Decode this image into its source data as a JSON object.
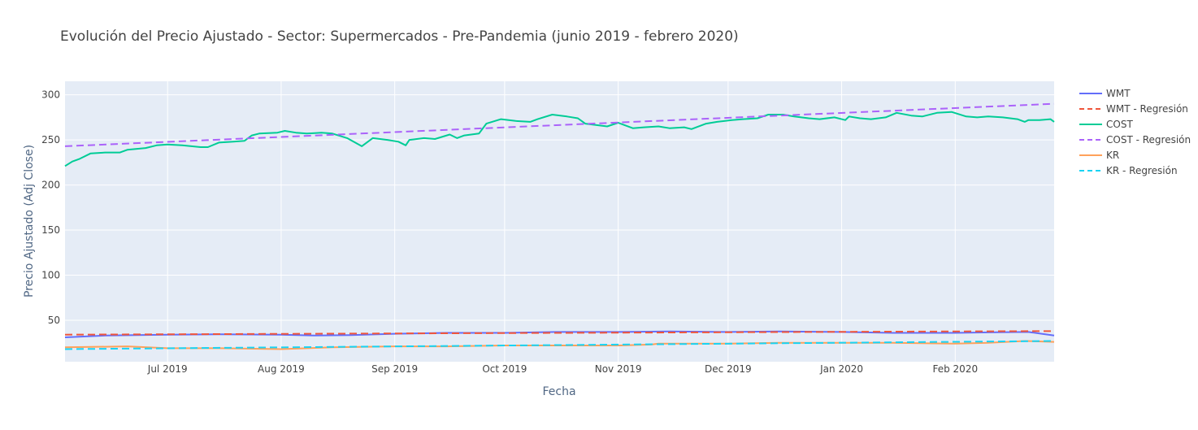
{
  "chart_data": {
    "type": "line",
    "title": "Evolución del Precio Ajustado - Sector: Supermercados - Pre-Pandemia (junio 2019 - febrero 2020)",
    "xlabel": "Fecha",
    "ylabel": "Precio Ajustado (Adj Close)",
    "xlim": [
      "2019-06-03",
      "2020-02-28"
    ],
    "ylim": [
      4,
      315
    ],
    "x_ticks": [
      {
        "date": "2019-07-01",
        "label": "Jul 2019"
      },
      {
        "date": "2019-08-01",
        "label": "Aug 2019"
      },
      {
        "date": "2019-09-01",
        "label": "Sep 2019"
      },
      {
        "date": "2019-10-01",
        "label": "Oct 2019"
      },
      {
        "date": "2019-11-01",
        "label": "Nov 2019"
      },
      {
        "date": "2019-12-01",
        "label": "Dec 2019"
      },
      {
        "date": "2020-01-01",
        "label": "Jan 2020"
      },
      {
        "date": "2020-02-01",
        "label": "Feb 2020"
      }
    ],
    "y_ticks": [
      50,
      100,
      150,
      200,
      250,
      300
    ],
    "grid": true,
    "plot_bgcolor": "#e5ecf6",
    "legend_position": "right",
    "series": [
      {
        "name": "WMT",
        "color": "#636efa",
        "dash": "solid",
        "points": [
          [
            "2019-06-03",
            31
          ],
          [
            "2019-06-14",
            33
          ],
          [
            "2019-07-01",
            34
          ],
          [
            "2019-07-15",
            34.5
          ],
          [
            "2019-08-01",
            34
          ],
          [
            "2019-08-10",
            33
          ],
          [
            "2019-08-20",
            33.5
          ],
          [
            "2019-09-01",
            35
          ],
          [
            "2019-09-15",
            36
          ],
          [
            "2019-10-01",
            36
          ],
          [
            "2019-10-15",
            37
          ],
          [
            "2019-11-01",
            37
          ],
          [
            "2019-11-15",
            37.5
          ],
          [
            "2019-12-01",
            37
          ],
          [
            "2019-12-15",
            37.5
          ],
          [
            "2020-01-01",
            37
          ],
          [
            "2020-01-15",
            36
          ],
          [
            "2020-02-01",
            36
          ],
          [
            "2020-02-10",
            36.5
          ],
          [
            "2020-02-21",
            37
          ],
          [
            "2020-02-28",
            33
          ]
        ]
      },
      {
        "name": "WMT - Regresión",
        "color": "#ef553b",
        "dash": "dash",
        "points": [
          [
            "2019-06-03",
            34
          ],
          [
            "2020-02-28",
            38
          ]
        ]
      },
      {
        "name": "COST",
        "color": "#00cc96",
        "dash": "solid",
        "points": [
          [
            "2019-06-03",
            221
          ],
          [
            "2019-06-05",
            226
          ],
          [
            "2019-06-07",
            229
          ],
          [
            "2019-06-10",
            235
          ],
          [
            "2019-06-14",
            236
          ],
          [
            "2019-06-18",
            236
          ],
          [
            "2019-06-20",
            239
          ],
          [
            "2019-06-25",
            241
          ],
          [
            "2019-06-28",
            244
          ],
          [
            "2019-07-01",
            245
          ],
          [
            "2019-07-05",
            244
          ],
          [
            "2019-07-10",
            242
          ],
          [
            "2019-07-12",
            242
          ],
          [
            "2019-07-15",
            247
          ],
          [
            "2019-07-19",
            248
          ],
          [
            "2019-07-22",
            249
          ],
          [
            "2019-07-24",
            255
          ],
          [
            "2019-07-26",
            257
          ],
          [
            "2019-07-31",
            258
          ],
          [
            "2019-08-02",
            260
          ],
          [
            "2019-08-05",
            258
          ],
          [
            "2019-08-08",
            257
          ],
          [
            "2019-08-12",
            258
          ],
          [
            "2019-08-15",
            257
          ],
          [
            "2019-08-19",
            252
          ],
          [
            "2019-08-23",
            243
          ],
          [
            "2019-08-26",
            252
          ],
          [
            "2019-08-28",
            251
          ],
          [
            "2019-08-30",
            250
          ],
          [
            "2019-09-02",
            248
          ],
          [
            "2019-09-04",
            244
          ],
          [
            "2019-09-05",
            250
          ],
          [
            "2019-09-09",
            252
          ],
          [
            "2019-09-12",
            251
          ],
          [
            "2019-09-16",
            256
          ],
          [
            "2019-09-18",
            252
          ],
          [
            "2019-09-20",
            255
          ],
          [
            "2019-09-24",
            257
          ],
          [
            "2019-09-26",
            268
          ],
          [
            "2019-09-30",
            273
          ],
          [
            "2019-10-04",
            271
          ],
          [
            "2019-10-08",
            270
          ],
          [
            "2019-10-10",
            273
          ],
          [
            "2019-10-14",
            278
          ],
          [
            "2019-10-18",
            276
          ],
          [
            "2019-10-21",
            274
          ],
          [
            "2019-10-23",
            268
          ],
          [
            "2019-10-25",
            267
          ],
          [
            "2019-10-29",
            265
          ],
          [
            "2019-11-01",
            269
          ],
          [
            "2019-11-05",
            263
          ],
          [
            "2019-11-08",
            264
          ],
          [
            "2019-11-12",
            265
          ],
          [
            "2019-11-15",
            263
          ],
          [
            "2019-11-19",
            264
          ],
          [
            "2019-11-21",
            262
          ],
          [
            "2019-11-25",
            268
          ],
          [
            "2019-11-28",
            270
          ],
          [
            "2019-12-02",
            272
          ],
          [
            "2019-12-05",
            273
          ],
          [
            "2019-12-09",
            274
          ],
          [
            "2019-12-12",
            278
          ],
          [
            "2019-12-16",
            278
          ],
          [
            "2019-12-19",
            276
          ],
          [
            "2019-12-23",
            274
          ],
          [
            "2019-12-26",
            273
          ],
          [
            "2019-12-30",
            275
          ],
          [
            "2020-01-02",
            272
          ],
          [
            "2020-01-03",
            276
          ],
          [
            "2020-01-06",
            274
          ],
          [
            "2020-01-09",
            273
          ],
          [
            "2020-01-13",
            275
          ],
          [
            "2020-01-16",
            280
          ],
          [
            "2020-01-20",
            277
          ],
          [
            "2020-01-23",
            276
          ],
          [
            "2020-01-27",
            280
          ],
          [
            "2020-01-31",
            281
          ],
          [
            "2020-02-04",
            276
          ],
          [
            "2020-02-07",
            275
          ],
          [
            "2020-02-10",
            276
          ],
          [
            "2020-02-14",
            275
          ],
          [
            "2020-02-18",
            273
          ],
          [
            "2020-02-20",
            270
          ],
          [
            "2020-02-21",
            272
          ],
          [
            "2020-02-24",
            272
          ],
          [
            "2020-02-27",
            273
          ],
          [
            "2020-02-28",
            270
          ]
        ]
      },
      {
        "name": "COST - Regresión",
        "color": "#ab63fa",
        "dash": "dash",
        "points": [
          [
            "2019-06-03",
            243
          ],
          [
            "2020-02-28",
            290
          ]
        ]
      },
      {
        "name": "KR",
        "color": "#ffa15a",
        "dash": "solid",
        "points": [
          [
            "2019-06-03",
            20
          ],
          [
            "2019-06-20",
            21
          ],
          [
            "2019-07-01",
            19
          ],
          [
            "2019-07-15",
            19
          ],
          [
            "2019-08-01",
            18
          ],
          [
            "2019-08-15",
            20
          ],
          [
            "2019-09-01",
            21
          ],
          [
            "2019-09-15",
            21
          ],
          [
            "2019-10-01",
            22
          ],
          [
            "2019-10-15",
            22
          ],
          [
            "2019-11-01",
            22
          ],
          [
            "2019-11-10",
            23
          ],
          [
            "2019-11-12",
            24
          ],
          [
            "2019-11-20",
            24
          ],
          [
            "2019-12-01",
            24
          ],
          [
            "2019-12-15",
            25
          ],
          [
            "2020-01-01",
            25
          ],
          [
            "2020-01-15",
            25
          ],
          [
            "2020-02-01",
            24
          ],
          [
            "2020-02-10",
            25
          ],
          [
            "2020-02-20",
            27
          ],
          [
            "2020-02-28",
            26
          ]
        ]
      },
      {
        "name": "KR - Regresión",
        "color": "#19d3f3",
        "dash": "dash",
        "points": [
          [
            "2019-06-03",
            18
          ],
          [
            "2020-02-28",
            27
          ]
        ]
      }
    ]
  }
}
